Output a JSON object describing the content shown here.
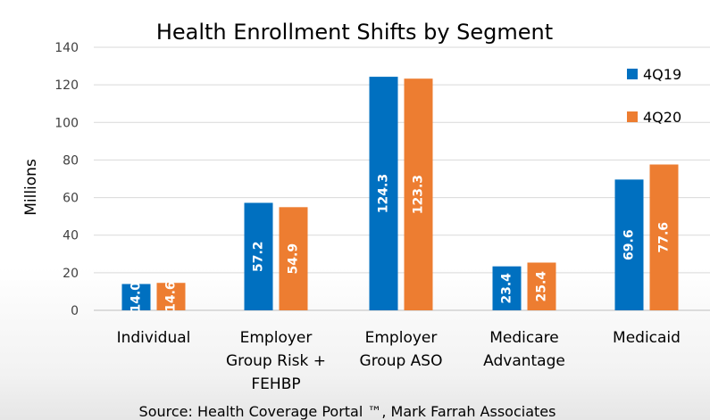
{
  "chart_data": {
    "type": "bar",
    "title": "Health Enrollment Shifts by Segment",
    "ylabel": "Millions",
    "xlabel": "",
    "ylim": [
      0,
      140
    ],
    "yticks": [
      0,
      20,
      40,
      60,
      80,
      100,
      120,
      140
    ],
    "grid": true,
    "legend_position": "top-right",
    "categories": [
      [
        "Individual"
      ],
      [
        "Employer",
        "Group Risk +",
        "FEHBP"
      ],
      [
        "Employer",
        "Group ASO"
      ],
      [
        "Medicare",
        "Advantage"
      ],
      [
        "Medicaid"
      ]
    ],
    "series": [
      {
        "name": "4Q19",
        "color": "#0070C0",
        "values": [
          14.0,
          57.2,
          124.3,
          23.4,
          69.6
        ]
      },
      {
        "name": "4Q20",
        "color": "#ED7D31",
        "values": [
          14.6,
          54.9,
          123.3,
          25.4,
          77.6
        ]
      }
    ],
    "source": "Source: Health Coverage Portal ™, Mark Farrah Associates"
  }
}
